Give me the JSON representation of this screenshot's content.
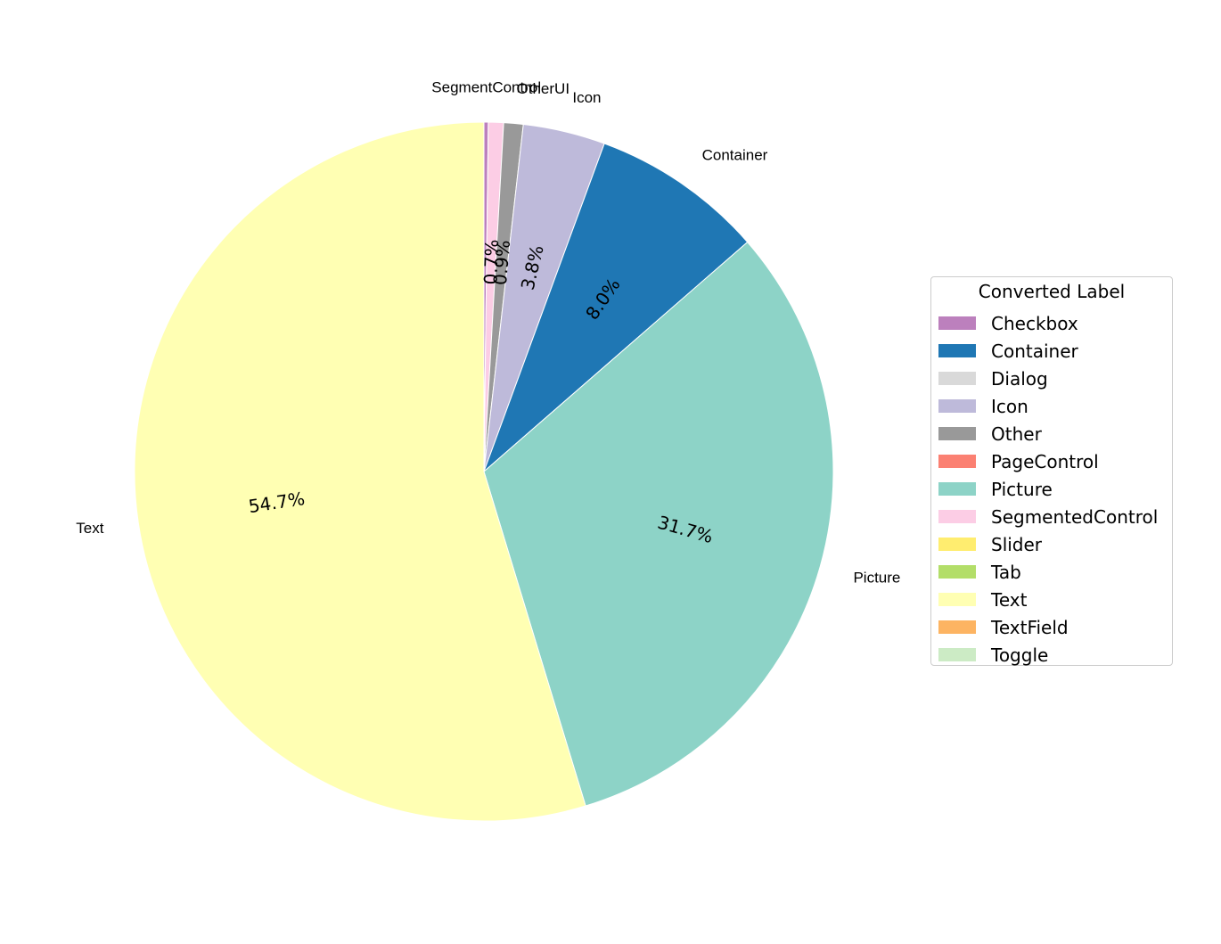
{
  "chart_data": {
    "type": "pie",
    "legend_title": "Converted Label",
    "legend": [
      {
        "label": "Checkbox",
        "color": "#bc80bd"
      },
      {
        "label": "Container",
        "color": "#1f77b4"
      },
      {
        "label": "Dialog",
        "color": "#d9d9d9"
      },
      {
        "label": "Icon",
        "color": "#bebada"
      },
      {
        "label": "Other",
        "color": "#999999"
      },
      {
        "label": "PageControl",
        "color": "#fb8072"
      },
      {
        "label": "Picture",
        "color": "#8dd3c7"
      },
      {
        "label": "SegmentedControl",
        "color": "#fccde5"
      },
      {
        "label": "Slider",
        "color": "#ffed6f"
      },
      {
        "label": "Tab",
        "color": "#b3de69"
      },
      {
        "label": "Text",
        "color": "#ffffb3"
      },
      {
        "label": "TextField",
        "color": "#fdb462"
      },
      {
        "label": "Toggle",
        "color": "#ccebc5"
      }
    ],
    "slices": [
      {
        "label": "SegmentControl",
        "value": 0.2,
        "pct_label": "",
        "color": "#bc80bd"
      },
      {
        "label": "",
        "value": 0.7,
        "pct_label": "0.7%",
        "color": "#fccde5"
      },
      {
        "label": "OtherUI",
        "value": 0.9,
        "pct_label": "0.9%",
        "color": "#999999"
      },
      {
        "label": "Icon",
        "value": 3.8,
        "pct_label": "3.8%",
        "color": "#bebada"
      },
      {
        "label": "Container",
        "value": 8.0,
        "pct_label": "8.0%",
        "color": "#1f77b4"
      },
      {
        "label": "Picture",
        "value": 31.7,
        "pct_label": "31.7%",
        "color": "#8dd3c7"
      },
      {
        "label": "Text",
        "value": 54.7,
        "pct_label": "54.7%",
        "color": "#ffffb3"
      }
    ],
    "start_angle": "top",
    "direction": "clockwise",
    "legend_position": "right"
  }
}
